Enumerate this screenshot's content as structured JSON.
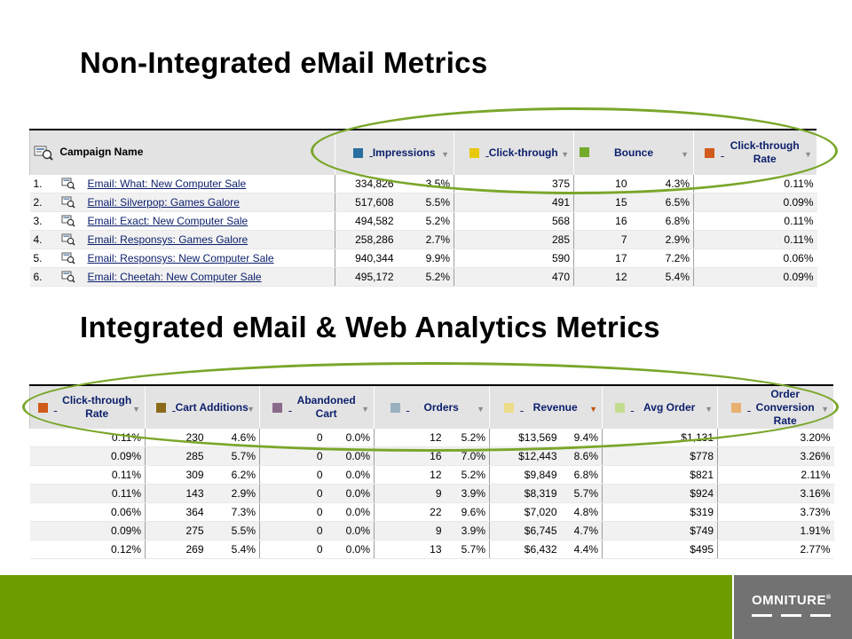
{
  "slide": {
    "title_top": "Non-Integrated  eMail Metrics",
    "title_bottom": "Integrated eMail & Web Analytics  Metrics",
    "brand": "OMNITURE",
    "brand_mark": "®"
  },
  "colors": {
    "footer_green": "#6c9c00",
    "logo_box": "#727272",
    "highlight_ellipse": "#7aa62a",
    "header_link": "#0b1e6b"
  },
  "report_top": {
    "campaign_header": "Campaign Name",
    "columns": [
      {
        "label": "Impressions",
        "swatch": "#2a6fa0"
      },
      {
        "label": "Click-through",
        "swatch": "#e8c80c"
      },
      {
        "label": "Bounce",
        "swatch": "#74aa2a"
      },
      {
        "label": "Click-through Rate",
        "swatch": "#d05a1a"
      }
    ],
    "rows": [
      {
        "idx": "1.",
        "name": "Email: What: New Computer Sale",
        "impressions": "334,826",
        "imp_pct": "3.5%",
        "clicks": "375",
        "bounce": "10",
        "bounce_pct": "4.3%",
        "ctr": "0.11%"
      },
      {
        "idx": "2.",
        "name": "Email: Silverpop: Games Galore",
        "impressions": "517,608",
        "imp_pct": "5.5%",
        "clicks": "491",
        "bounce": "15",
        "bounce_pct": "6.5%",
        "ctr": "0.09%"
      },
      {
        "idx": "3.",
        "name": "Email: Exact: New Computer Sale",
        "impressions": "494,582",
        "imp_pct": "5.2%",
        "clicks": "568",
        "bounce": "16",
        "bounce_pct": "6.8%",
        "ctr": "0.11%"
      },
      {
        "idx": "4.",
        "name": "Email: Responsys: Games Galore",
        "impressions": "258,286",
        "imp_pct": "2.7%",
        "clicks": "285",
        "bounce": "7",
        "bounce_pct": "2.9%",
        "ctr": "0.11%"
      },
      {
        "idx": "5.",
        "name": "Email: Responsys: New Computer Sale",
        "impressions": "940,344",
        "imp_pct": "9.9%",
        "clicks": "590",
        "bounce": "17",
        "bounce_pct": "7.2%",
        "ctr": "0.06%"
      },
      {
        "idx": "6.",
        "name": "Email: Cheetah: New Computer Sale",
        "impressions": "495,172",
        "imp_pct": "5.2%",
        "clicks": "470",
        "bounce": "12",
        "bounce_pct": "5.4%",
        "ctr": "0.09%"
      }
    ]
  },
  "report_bottom": {
    "columns": [
      {
        "label": "Click-through Rate",
        "swatch": "#d05a1a"
      },
      {
        "label": "Cart Additions",
        "swatch": "#8a6a1a"
      },
      {
        "label": "Abandoned Cart",
        "swatch": "#8a6a8a"
      },
      {
        "label": "Orders",
        "swatch": "#9ab0c0"
      },
      {
        "label": "Revenue",
        "swatch": "#ecdc8a"
      },
      {
        "label": "Avg Order",
        "swatch": "#c4dc90"
      },
      {
        "label": "Order Conversion Rate",
        "swatch": "#e8b070"
      }
    ],
    "rows": [
      {
        "ctr": "0.11%",
        "cart": "230",
        "cart_pct": "4.6%",
        "aband": "0",
        "aband_pct": "0.0%",
        "orders": "12",
        "orders_pct": "5.2%",
        "revenue": "$13,569",
        "rev_pct": "9.4%",
        "avg": "$1,131",
        "conv": "3.20%"
      },
      {
        "ctr": "0.09%",
        "cart": "285",
        "cart_pct": "5.7%",
        "aband": "0",
        "aband_pct": "0.0%",
        "orders": "16",
        "orders_pct": "7.0%",
        "revenue": "$12,443",
        "rev_pct": "8.6%",
        "avg": "$778",
        "conv": "3.26%"
      },
      {
        "ctr": "0.11%",
        "cart": "309",
        "cart_pct": "6.2%",
        "aband": "0",
        "aband_pct": "0.0%",
        "orders": "12",
        "orders_pct": "5.2%",
        "revenue": "$9,849",
        "rev_pct": "6.8%",
        "avg": "$821",
        "conv": "2.11%"
      },
      {
        "ctr": "0.11%",
        "cart": "143",
        "cart_pct": "2.9%",
        "aband": "0",
        "aband_pct": "0.0%",
        "orders": "9",
        "orders_pct": "3.9%",
        "revenue": "$8,319",
        "rev_pct": "5.7%",
        "avg": "$924",
        "conv": "3.16%"
      },
      {
        "ctr": "0.06%",
        "cart": "364",
        "cart_pct": "7.3%",
        "aband": "0",
        "aband_pct": "0.0%",
        "orders": "22",
        "orders_pct": "9.6%",
        "revenue": "$7,020",
        "rev_pct": "4.8%",
        "avg": "$319",
        "conv": "3.73%"
      },
      {
        "ctr": "0.09%",
        "cart": "275",
        "cart_pct": "5.5%",
        "aband": "0",
        "aband_pct": "0.0%",
        "orders": "9",
        "orders_pct": "3.9%",
        "revenue": "$6,745",
        "rev_pct": "4.7%",
        "avg": "$749",
        "conv": "1.91%"
      },
      {
        "ctr": "0.12%",
        "cart": "269",
        "cart_pct": "5.4%",
        "aband": "0",
        "aband_pct": "0.0%",
        "orders": "13",
        "orders_pct": "5.7%",
        "revenue": "$6,432",
        "rev_pct": "4.4%",
        "avg": "$495",
        "conv": "2.77%"
      }
    ]
  }
}
